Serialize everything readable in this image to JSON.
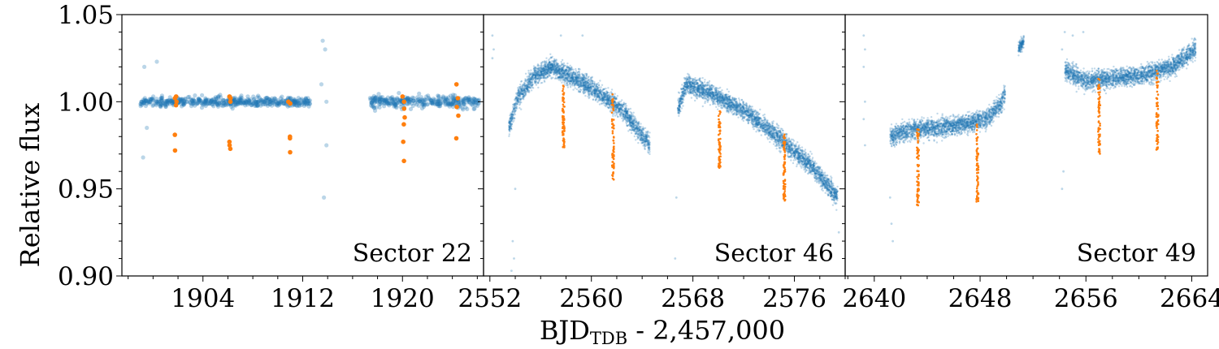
{
  "chart_data": {
    "type": "scatter",
    "ylabel": "Relative flux",
    "xlabel": {
      "main": "BJD",
      "subscript": "TDB",
      "suffix": " - 2,457,000"
    },
    "ylim": [
      0.9,
      1.05
    ],
    "yticks": [
      0.9,
      0.95,
      1.0,
      1.05
    ],
    "ytick_labels": [
      "0.90",
      "0.95",
      "1.00",
      "1.05"
    ],
    "colors": {
      "baseline": "#1f77b4",
      "transit": "#ff7f0e"
    },
    "panels": [
      {
        "label": "Sector 22",
        "xlim": [
          1897.5,
          1926.5
        ],
        "xticks": [
          1904,
          1912,
          1920
        ],
        "xtick_labels": [
          "1904",
          "1912",
          "1920"
        ],
        "segments": [
          {
            "x": [
              1899.0,
              1912.6
            ],
            "trend": [
              [
                1899.0,
                1.0
              ],
              [
                1912.6,
                1.0
              ]
            ],
            "scatter": 0.0025,
            "density": "sparse"
          },
          {
            "x": [
              1917.4,
              1926.2
            ],
            "trend": [
              [
                1917.4,
                1.0
              ],
              [
                1926.2,
                1.0
              ]
            ],
            "scatter": 0.003,
            "density": "sparse"
          }
        ],
        "outliers": [
          [
            1899.2,
            0.968
          ],
          [
            1899.5,
            0.985
          ],
          [
            1899.3,
            1.02
          ],
          [
            1900.3,
            1.023
          ],
          [
            1913.6,
            1.035
          ],
          [
            1913.8,
            1.03
          ],
          [
            1913.7,
            0.945
          ],
          [
            1913.9,
            1.0
          ],
          [
            1913.5,
            1.01
          ],
          [
            1913.9,
            0.975
          ]
        ],
        "transits": [
          {
            "x": 1901.8,
            "depths": [
              0.972,
              0.981,
              0.998,
              1.0,
              1.002,
              1.003
            ]
          },
          {
            "x": 1906.2,
            "depths": [
              0.973,
              0.975,
              0.977,
              1.0,
              1.002,
              1.003
            ]
          },
          {
            "x": 1910.9,
            "depths": [
              0.971,
              0.979,
              0.98,
              0.999,
              1.0
            ]
          },
          {
            "x": 1920.1,
            "depths": [
              0.966,
              0.977,
              0.987,
              0.991,
              0.996,
              1.0,
              1.003
            ]
          },
          {
            "x": 1924.4,
            "depths": [
              0.979,
              0.992,
              0.997,
              1.002,
              1.01
            ]
          }
        ]
      },
      {
        "label": "Sector 46",
        "xlim": [
          2551.5,
          2580.0
        ],
        "xticks": [
          2552,
          2560,
          2568,
          2576
        ],
        "xtick_labels": [
          "2552",
          "2560",
          "2568",
          "2576"
        ],
        "segments": [
          {
            "x": [
              2553.5,
              2564.6
            ],
            "trend": [
              [
                2553.5,
                0.985
              ],
              [
                2554.2,
                1.002
              ],
              [
                2555.5,
                1.015
              ],
              [
                2557.0,
                1.02
              ],
              [
                2560.0,
                1.008
              ],
              [
                2562.5,
                0.995
              ],
              [
                2564.6,
                0.975
              ]
            ],
            "scatter": 0.0045,
            "density": "dense"
          },
          {
            "x": [
              2566.8,
              2579.4
            ],
            "trend": [
              [
                2566.8,
                0.995
              ],
              [
                2567.5,
                1.01
              ],
              [
                2569.0,
                1.006
              ],
              [
                2572.0,
                0.995
              ],
              [
                2575.0,
                0.978
              ],
              [
                2577.5,
                0.962
              ],
              [
                2579.4,
                0.945
              ]
            ],
            "scatter": 0.0045,
            "density": "dense"
          }
        ],
        "outliers": [
          [
            2552.2,
            1.038
          ],
          [
            2552.3,
            1.03
          ],
          [
            2552.2,
            1.025
          ],
          [
            2553.8,
            0.92
          ],
          [
            2553.9,
            0.91
          ],
          [
            2553.7,
            0.903
          ],
          [
            2554.0,
            0.95
          ],
          [
            2557.6,
            1.038
          ],
          [
            2559.3,
            1.038
          ],
          [
            2566.6,
            0.91
          ],
          [
            2566.7,
            0.945
          ],
          [
            2579.5,
            0.925
          ]
        ],
        "transits": [
          {
            "x": 2557.8,
            "range": [
              0.973,
              1.01
            ]
          },
          {
            "x": 2561.7,
            "range": [
              0.955,
              1.005
            ]
          },
          {
            "x": 2570.1,
            "range": [
              0.962,
              0.995
            ]
          },
          {
            "x": 2575.2,
            "range": [
              0.943,
              0.982
            ]
          }
        ]
      },
      {
        "label": "Sector 49",
        "xlim": [
          2637.8,
          2665.2
        ],
        "xticks": [
          2640,
          2648,
          2656,
          2664
        ],
        "xtick_labels": [
          "2640",
          "2648",
          "2656",
          "2664"
        ],
        "segments": [
          {
            "x": [
              2641.2,
              2649.9
            ],
            "trend": [
              [
                2641.2,
                0.98
              ],
              [
                2643.0,
                0.984
              ],
              [
                2646.0,
                0.986
              ],
              [
                2648.5,
                0.99
              ],
              [
                2649.5,
                0.998
              ],
              [
                2649.9,
                1.005
              ]
            ],
            "scatter": 0.0045,
            "density": "dense"
          },
          {
            "x": [
              2650.9,
              2651.3
            ],
            "trend": [
              [
                2650.9,
                1.03
              ],
              [
                2651.3,
                1.035
              ]
            ],
            "scatter": 0.003,
            "density": "dense"
          },
          {
            "x": [
              2654.4,
              2664.3
            ],
            "trend": [
              [
                2654.4,
                1.018
              ],
              [
                2656.0,
                1.012
              ],
              [
                2660.0,
                1.015
              ],
              [
                2662.5,
                1.02
              ],
              [
                2664.3,
                1.03
              ]
            ],
            "scatter": 0.0045,
            "density": "dense"
          }
        ],
        "outliers": [
          [
            2639.2,
            1.038
          ],
          [
            2639.3,
            1.03
          ],
          [
            2639.2,
            1.02
          ],
          [
            2639.3,
            1.0
          ],
          [
            2639.2,
            0.99
          ],
          [
            2639.3,
            0.975
          ],
          [
            2641.3,
            0.93
          ],
          [
            2641.4,
            0.92
          ],
          [
            2641.2,
            0.945
          ],
          [
            2654.2,
            1.03
          ],
          [
            2654.3,
            0.96
          ],
          [
            2654.2,
            0.95
          ],
          [
            2654.4,
            1.04
          ],
          [
            2655.8,
            1.04
          ],
          [
            2655.0,
            1.038
          ]
        ],
        "transits": [
          {
            "x": 2643.3,
            "range": [
              0.94,
              0.985
            ]
          },
          {
            "x": 2647.8,
            "range": [
              0.942,
              0.988
            ]
          },
          {
            "x": 2657.0,
            "range": [
              0.97,
              1.015
            ]
          },
          {
            "x": 2661.4,
            "range": [
              0.972,
              1.018
            ]
          }
        ]
      }
    ]
  }
}
